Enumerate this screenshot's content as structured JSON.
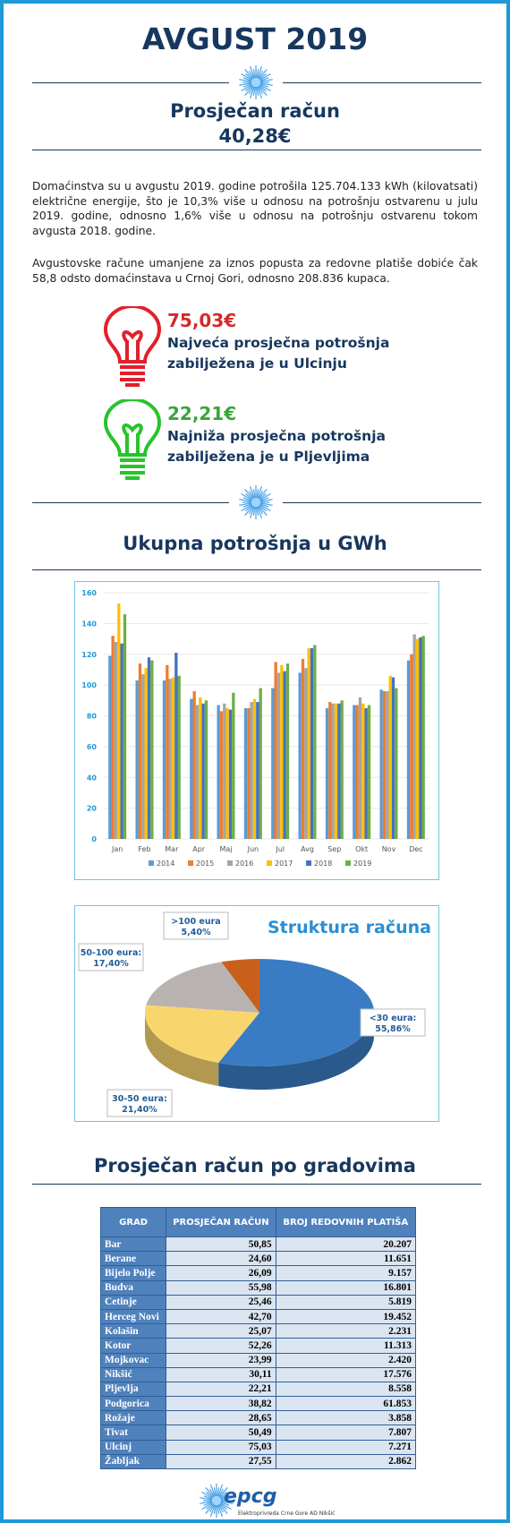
{
  "header": {
    "title": "AVGUST 2019",
    "subtitle": "Prosječan račun",
    "average": "40,28€"
  },
  "intro": [
    "Domaćinstva su u avgustu 2019. godine potrošila 125.704.133 kWh (kilovatsati) električne energije, što je 10,3% više u odnosu na potrošnju ostvarenu u julu 2019. godine, odnosno 1,6% više u odnosu na potrošnju ostvarenu tokom avgusta 2018. godine.",
    "Avgustovske račune umanjene za iznos popusta za redovne platiše dobiće čak 58,8 odsto domaćinstava u Crnoj Gori, odnosno 208.836 kupaca."
  ],
  "highlights": [
    {
      "value": "75,03€",
      "lines": [
        "Najveća prosječna potrošnja",
        "zabilježena je u Ulcinju"
      ]
    },
    {
      "value": "22,21€",
      "lines": [
        "Najniža prosječna potrošnja",
        "zabilježena je u Pljevljima"
      ]
    }
  ],
  "sections": [
    "Ukupna potrošnja u GWh",
    "Prosječan račun po gradovima"
  ],
  "chart_data": [
    {
      "type": "bar",
      "categories": [
        "Jan",
        "Feb",
        "Mar",
        "Apr",
        "Maj",
        "Jun",
        "Jul",
        "Avg",
        "Sep",
        "Okt",
        "Nov",
        "Dec"
      ],
      "series": [
        {
          "name": "2014",
          "color": "#5b9bd5",
          "values": [
            119,
            103,
            103,
            91,
            87,
            85,
            98,
            108,
            85,
            87,
            97,
            116
          ]
        },
        {
          "name": "2015",
          "color": "#ed7d31",
          "values": [
            132,
            114,
            113,
            96,
            83,
            85,
            115,
            117,
            89,
            87,
            96,
            120
          ]
        },
        {
          "name": "2016",
          "color": "#a5a5a5",
          "values": [
            128,
            107,
            104,
            87,
            88,
            89,
            108,
            111,
            88,
            92,
            96,
            133
          ]
        },
        {
          "name": "2017",
          "color": "#ffc000",
          "values": [
            153,
            111,
            105,
            92,
            85,
            91,
            113,
            124,
            88,
            88,
            106,
            130
          ]
        },
        {
          "name": "2018",
          "color": "#4472c4",
          "values": [
            127,
            118,
            121,
            88,
            84,
            89,
            109,
            124,
            88,
            85,
            105,
            131
          ]
        },
        {
          "name": "2019",
          "color": "#70ad47",
          "values": [
            146,
            116,
            106,
            90,
            95,
            98,
            114,
            126,
            90,
            87,
            98,
            132
          ]
        }
      ],
      "ylim": [
        0,
        160
      ],
      "yticks": [
        0,
        20,
        40,
        60,
        80,
        100,
        120,
        140,
        160
      ],
      "grid": true,
      "legend": "bottom"
    },
    {
      "type": "pie",
      "title": "Struktura računa",
      "categories": [
        "<30 eura:",
        "30-50 eura:",
        "50-100 eura:",
        ">100 eura"
      ],
      "values": [
        55.86,
        21.4,
        17.4,
        5.4
      ],
      "value_labels": [
        "55,86%",
        "21,40%",
        "17,40%",
        "5,40%"
      ],
      "colors": [
        "#3a7cc3",
        "#f9d56e",
        "#b8b3b0",
        "#c8601c"
      ]
    }
  ],
  "table": {
    "header": [
      "GRAD",
      "PROSJEČAN RAČUN",
      "BROJ REDOVNIH PLATIŠA"
    ],
    "rows": [
      [
        "Bar",
        "50,85",
        "20.207"
      ],
      [
        "Berane",
        "24,60",
        "11.651"
      ],
      [
        "Bijelo Polje",
        "26,09",
        "9.157"
      ],
      [
        "Budva",
        "55,98",
        "16.801"
      ],
      [
        "Cetinje",
        "25,46",
        "5.819"
      ],
      [
        "Herceg Novi",
        "42,70",
        "19.452"
      ],
      [
        "Kolašin",
        "25,07",
        "2.231"
      ],
      [
        "Kotor",
        "52,26",
        "11.313"
      ],
      [
        "Mojkovac",
        "23,99",
        "2.420"
      ],
      [
        "Nikšić",
        "30,11",
        "17.576"
      ],
      [
        "Pljevlja",
        "22,21",
        "8.558"
      ],
      [
        "Podgorica",
        "38,82",
        "61.853"
      ],
      [
        "Rožaje",
        "28,65",
        "3.858"
      ],
      [
        "Tivat",
        "50,49",
        "7.807"
      ],
      [
        "Ulcinj",
        "75,03",
        "7.271"
      ],
      [
        "Žabljak",
        "27,55",
        "2.862"
      ]
    ]
  },
  "footer": {
    "logo": "epcg",
    "company": "Elektroprivreda Crne Gore AD Nikšić"
  }
}
